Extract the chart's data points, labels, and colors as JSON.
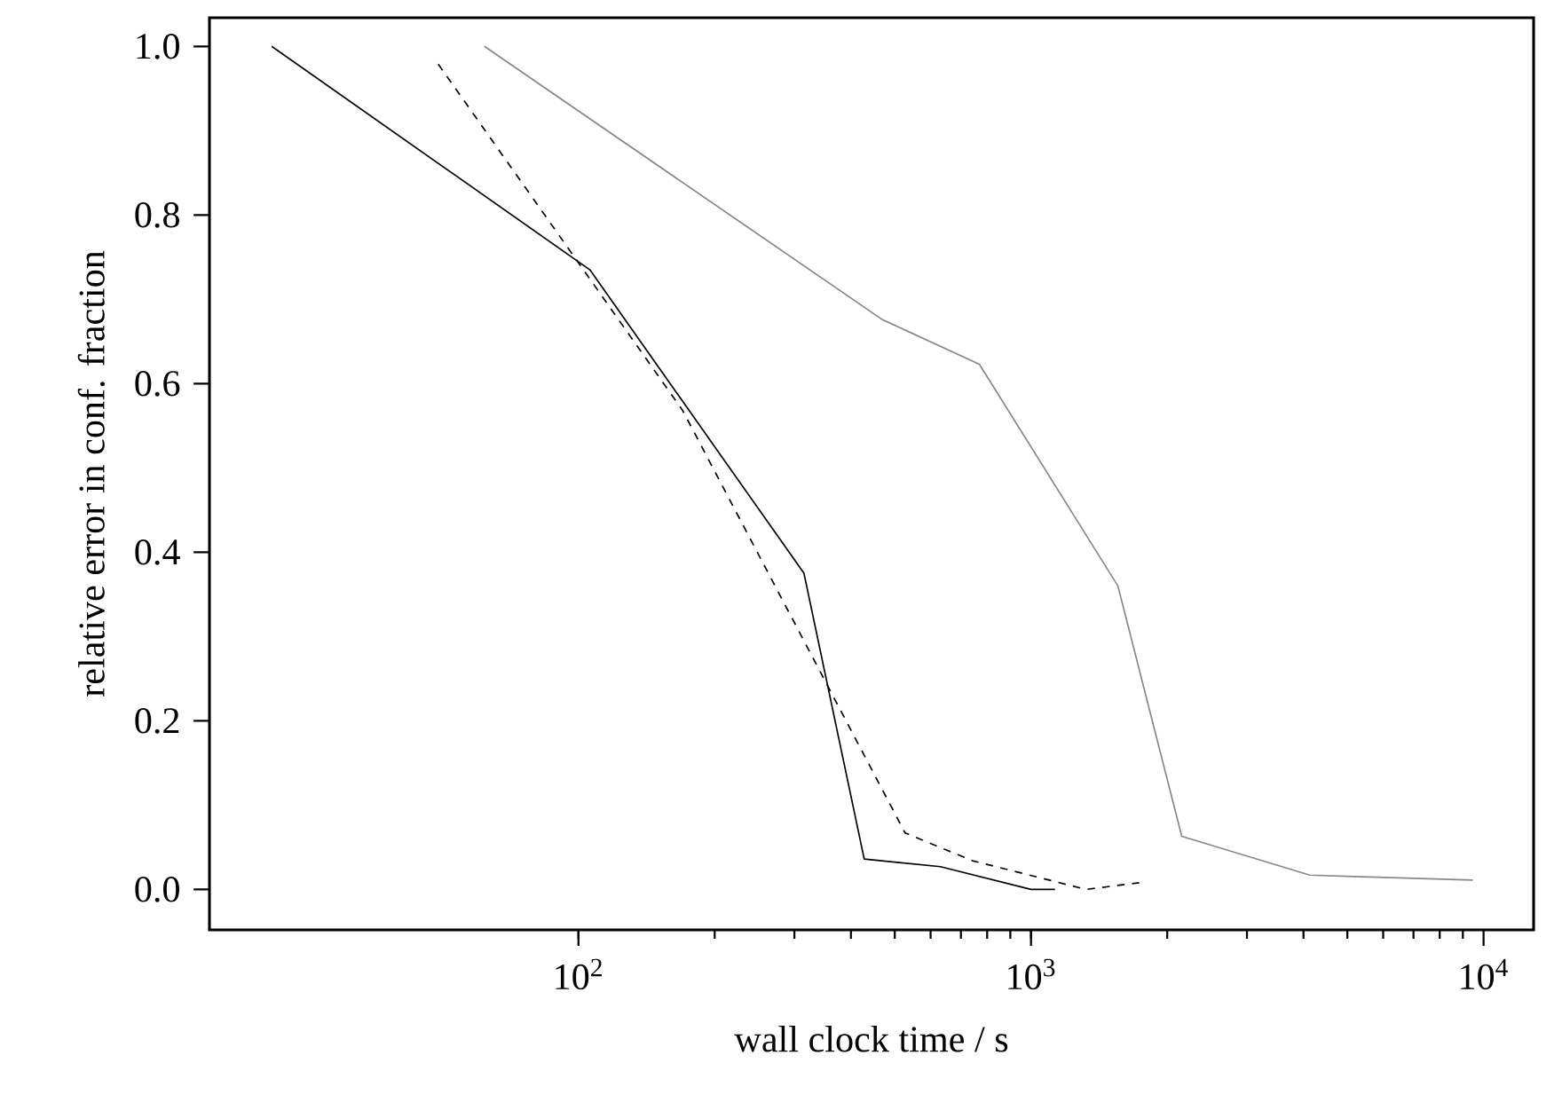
{
  "chart_data": {
    "type": "line",
    "xlabel": "wall clock time / s",
    "ylabel": "relative error in conf. fraction",
    "log": "x",
    "xlim": [
      15.3,
      12900
    ],
    "ylim": [
      -0.048,
      1.034
    ],
    "xticks": [
      {
        "value": 100,
        "label": "10$^{2}$"
      },
      {
        "value": 1000,
        "label": "10$^{3}$"
      },
      {
        "value": 10000,
        "label": "10$^{4}$"
      }
    ],
    "yticks": [
      {
        "value": 0,
        "label": "0.0"
      },
      {
        "value": 0.2,
        "label": "0.2"
      },
      {
        "value": 0.4,
        "label": "0.4"
      },
      {
        "value": 0.6,
        "label": "0.6"
      },
      {
        "value": 0.8,
        "label": "0.8"
      },
      {
        "value": 1.0,
        "label": "1.0"
      }
    ],
    "grid": false,
    "marker": "none",
    "series": [
      {
        "color": "#000000",
        "line_style": "solid",
        "x": [
          21,
          106,
          315,
          428,
          631,
          1000,
          1130
        ],
        "values": [
          1.0,
          0.735,
          0.375,
          0.036,
          0.027,
          0.0,
          0.0
        ]
      },
      {
        "color": "#000000",
        "line_style": "dashed",
        "x": [
          49,
          170,
          527,
          743,
          1324,
          1734
        ],
        "values": [
          0.979,
          0.568,
          0.067,
          0.034,
          0.0,
          0.008
        ]
      },
      {
        "color": "#888888",
        "line_style": "solid",
        "x": [
          62,
          469,
          769,
          1556,
          2153,
          4130,
          5400,
          9460
        ],
        "values": [
          1.0,
          0.676,
          0.623,
          0.36,
          0.063,
          0.017,
          0.015,
          0.011
        ]
      }
    ]
  }
}
